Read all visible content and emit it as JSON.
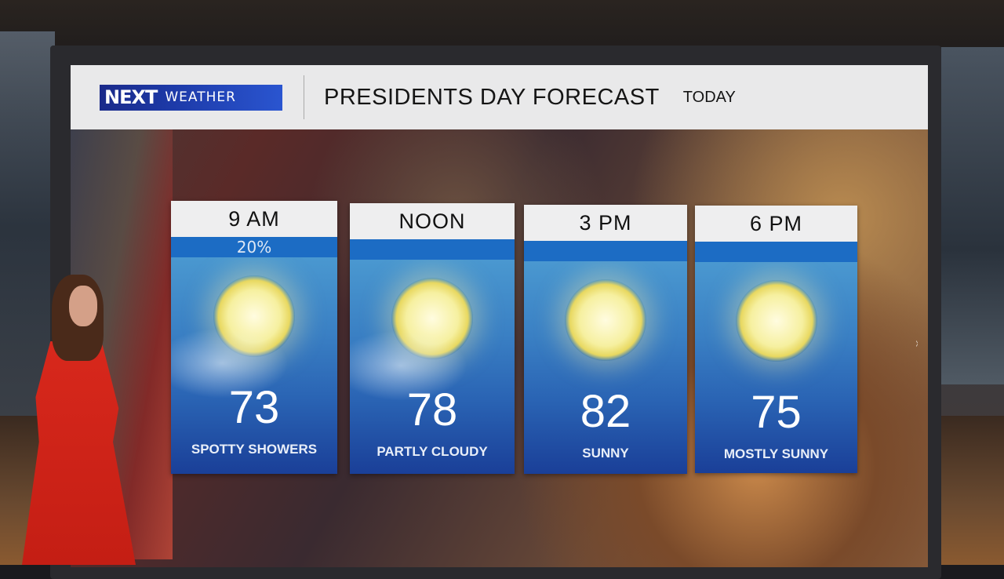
{
  "header": {
    "logo_next": "NEXT",
    "logo_weather": "WEATHER",
    "title": "PRESIDENTS DAY FORECAST",
    "subtitle": "TODAY"
  },
  "forecast": [
    {
      "time": "9 AM",
      "precip": "20%",
      "temp": "73",
      "condition": "SPOTTY SHOWERS",
      "icon": "sun-cloud-icon"
    },
    {
      "time": "NOON",
      "precip": "",
      "temp": "78",
      "condition": "PARTLY CLOUDY",
      "icon": "sun-cloud-icon"
    },
    {
      "time": "3 PM",
      "precip": "",
      "temp": "82",
      "condition": "SUNNY",
      "icon": "sun-icon"
    },
    {
      "time": "6 PM",
      "precip": "",
      "temp": "75",
      "condition": "MOSTLY SUNNY",
      "icon": "sun-icon"
    }
  ],
  "colors": {
    "logo_blue": "#1d3aa8",
    "strip_blue": "#1c6cc4",
    "header_bg": "#e9e9ea"
  }
}
